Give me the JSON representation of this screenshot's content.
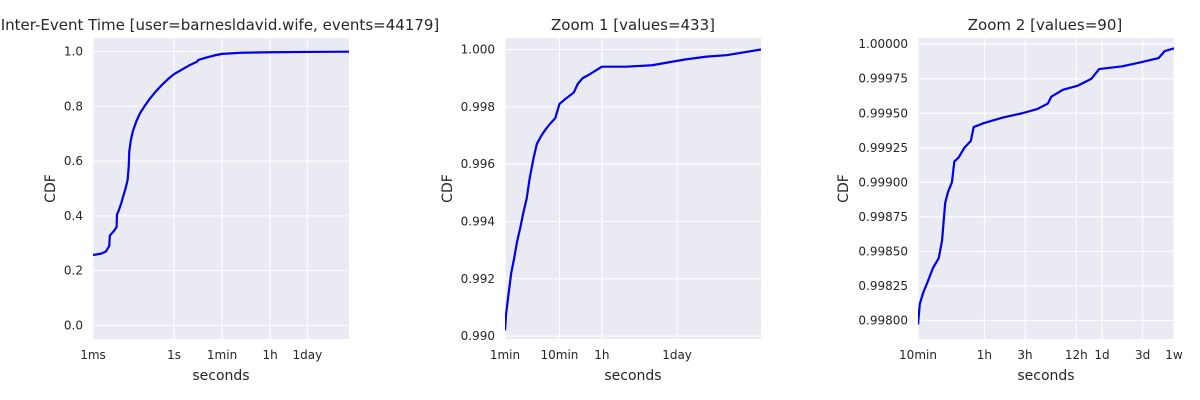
{
  "colors": {
    "background": "#eaeaf2",
    "grid": "#ffffff",
    "line": "#0000ee",
    "text": "#262626"
  },
  "chart_data": [
    {
      "type": "line",
      "title": "Inter-Event Time [user=barnesldavid.wife, events=44179]",
      "xlabel": "seconds",
      "ylabel": "CDF",
      "xscale": "log",
      "grid": true,
      "xlim": [
        0.001,
        3000000
      ],
      "ylim": [
        -0.05,
        1.05
      ],
      "xticks": [
        {
          "value": 0.001,
          "label": "1ms"
        },
        {
          "value": 1,
          "label": "1s"
        },
        {
          "value": 60,
          "label": "1min"
        },
        {
          "value": 3600,
          "label": "1h"
        },
        {
          "value": 86400,
          "label": "1day"
        }
      ],
      "yticks": [
        {
          "value": 0.0,
          "label": "0.0"
        },
        {
          "value": 0.2,
          "label": "0.2"
        },
        {
          "value": 0.4,
          "label": "0.4"
        },
        {
          "value": 0.6,
          "label": "0.6"
        },
        {
          "value": 0.8,
          "label": "0.8"
        },
        {
          "value": 1.0,
          "label": "1.0"
        }
      ],
      "series": [
        {
          "points": [
            [
              0.001,
              0.257
            ],
            [
              0.002,
              0.262
            ],
            [
              0.003,
              0.27
            ],
            [
              0.004,
              0.29
            ],
            [
              0.0042,
              0.328
            ],
            [
              0.006,
              0.345
            ],
            [
              0.0075,
              0.36
            ],
            [
              0.0077,
              0.405
            ],
            [
              0.009,
              0.42
            ],
            [
              0.011,
              0.445
            ],
            [
              0.013,
              0.47
            ],
            [
              0.016,
              0.5
            ],
            [
              0.019,
              0.53
            ],
            [
              0.021,
              0.58
            ],
            [
              0.022,
              0.635
            ],
            [
              0.025,
              0.675
            ],
            [
              0.03,
              0.71
            ],
            [
              0.04,
              0.745
            ],
            [
              0.055,
              0.775
            ],
            [
              0.08,
              0.8
            ],
            [
              0.12,
              0.825
            ],
            [
              0.2,
              0.852
            ],
            [
              0.35,
              0.878
            ],
            [
              0.6,
              0.9
            ],
            [
              1.0,
              0.918
            ],
            [
              2.0,
              0.935
            ],
            [
              4.0,
              0.952
            ],
            [
              7.0,
              0.963
            ],
            [
              8.0,
              0.97
            ],
            [
              15.0,
              0.978
            ],
            [
              30.0,
              0.986
            ],
            [
              60.0,
              0.992
            ],
            [
              300.0,
              0.996
            ],
            [
              3600.0,
              0.998
            ],
            [
              86400.0,
              0.999
            ],
            [
              3000000.0,
              1.0
            ]
          ]
        }
      ]
    },
    {
      "type": "line",
      "title": "Zoom 1 [values=433]",
      "xlabel": "seconds",
      "ylabel": "CDF",
      "xscale": "log",
      "grid": true,
      "xlim": [
        60,
        3000000
      ],
      "ylim": [
        0.9899,
        1.0004
      ],
      "xticks": [
        {
          "value": 60,
          "label": "1min"
        },
        {
          "value": 600,
          "label": "10min"
        },
        {
          "value": 3600,
          "label": "1h"
        },
        {
          "value": 86400,
          "label": "1day"
        }
      ],
      "yticks": [
        {
          "value": 0.99,
          "label": "0.990"
        },
        {
          "value": 0.992,
          "label": "0.992"
        },
        {
          "value": 0.994,
          "label": "0.994"
        },
        {
          "value": 0.996,
          "label": "0.996"
        },
        {
          "value": 0.998,
          "label": "0.998"
        },
        {
          "value": 1.0,
          "label": "1.000"
        }
      ],
      "series": [
        {
          "points": [
            [
              60,
              0.9902
            ],
            [
              63,
              0.9908
            ],
            [
              70,
              0.9915
            ],
            [
              78,
              0.9922
            ],
            [
              88,
              0.9927
            ],
            [
              100,
              0.9933
            ],
            [
              115,
              0.9938
            ],
            [
              130,
              0.9943
            ],
            [
              150,
              0.9948
            ],
            [
              170,
              0.9955
            ],
            [
              200,
              0.9962
            ],
            [
              230,
              0.9967
            ],
            [
              280,
              0.997
            ],
            [
              330,
              0.9972
            ],
            [
              400,
              0.9974
            ],
            [
              500,
              0.9976
            ],
            [
              600,
              0.9981
            ],
            [
              800,
              0.9983
            ],
            [
              1100,
              0.9985
            ],
            [
              1300,
              0.9988
            ],
            [
              1600,
              0.999
            ],
            [
              2000,
              0.9991
            ],
            [
              3600,
              0.9994
            ],
            [
              10000,
              0.9994
            ],
            [
              30000,
              0.99945
            ],
            [
              60000,
              0.99955
            ],
            [
              120000,
              0.99965
            ],
            [
              300000,
              0.99975
            ],
            [
              700000,
              0.9998
            ],
            [
              3000000,
              1.0
            ]
          ]
        }
      ]
    },
    {
      "type": "line",
      "title": "Zoom 2 [values=90]",
      "xlabel": "seconds",
      "ylabel": "CDF",
      "xscale": "log",
      "grid": true,
      "xlim": [
        600,
        604800
      ],
      "ylim": [
        0.997865,
        1.000045
      ],
      "xticks": [
        {
          "value": 600,
          "label": "10min"
        },
        {
          "value": 3600,
          "label": "1h"
        },
        {
          "value": 10800,
          "label": "3h"
        },
        {
          "value": 43200,
          "label": "12h"
        },
        {
          "value": 86400,
          "label": "1d"
        },
        {
          "value": 259200,
          "label": "3d"
        },
        {
          "value": 604800,
          "label": "1w"
        }
      ],
      "yticks": [
        {
          "value": 0.998,
          "label": "0.99800"
        },
        {
          "value": 0.99825,
          "label": "0.99825"
        },
        {
          "value": 0.9985,
          "label": "0.99850"
        },
        {
          "value": 0.99875,
          "label": "0.99875"
        },
        {
          "value": 0.999,
          "label": "0.99900"
        },
        {
          "value": 0.99925,
          "label": "0.99925"
        },
        {
          "value": 0.9995,
          "label": "0.99950"
        },
        {
          "value": 0.99975,
          "label": "0.99975"
        },
        {
          "value": 1.0,
          "label": "1.00000"
        }
      ],
      "series": [
        {
          "points": [
            [
              600,
              0.99797
            ],
            [
              630,
              0.99812
            ],
            [
              690,
              0.9982
            ],
            [
              780,
              0.99828
            ],
            [
              900,
              0.99838
            ],
            [
              1050,
              0.99845
            ],
            [
              1150,
              0.99858
            ],
            [
              1250,
              0.99885
            ],
            [
              1350,
              0.99893
            ],
            [
              1500,
              0.999
            ],
            [
              1600,
              0.99915
            ],
            [
              1800,
              0.99918
            ],
            [
              2100,
              0.99925
            ],
            [
              2500,
              0.9993
            ],
            [
              2700,
              0.9994
            ],
            [
              3600,
              0.99943
            ],
            [
              6000,
              0.99947
            ],
            [
              10000,
              0.9995
            ],
            [
              15000,
              0.99953
            ],
            [
              20000,
              0.99957
            ],
            [
              22000,
              0.99962
            ],
            [
              30000,
              0.99967
            ],
            [
              45000,
              0.9997
            ],
            [
              65000,
              0.99975
            ],
            [
              80000,
              0.99982
            ],
            [
              150000,
              0.99984
            ],
            [
              250000,
              0.99987
            ],
            [
              400000,
              0.9999
            ],
            [
              470000,
              0.99995
            ],
            [
              604800,
              0.99997
            ]
          ]
        }
      ]
    }
  ]
}
